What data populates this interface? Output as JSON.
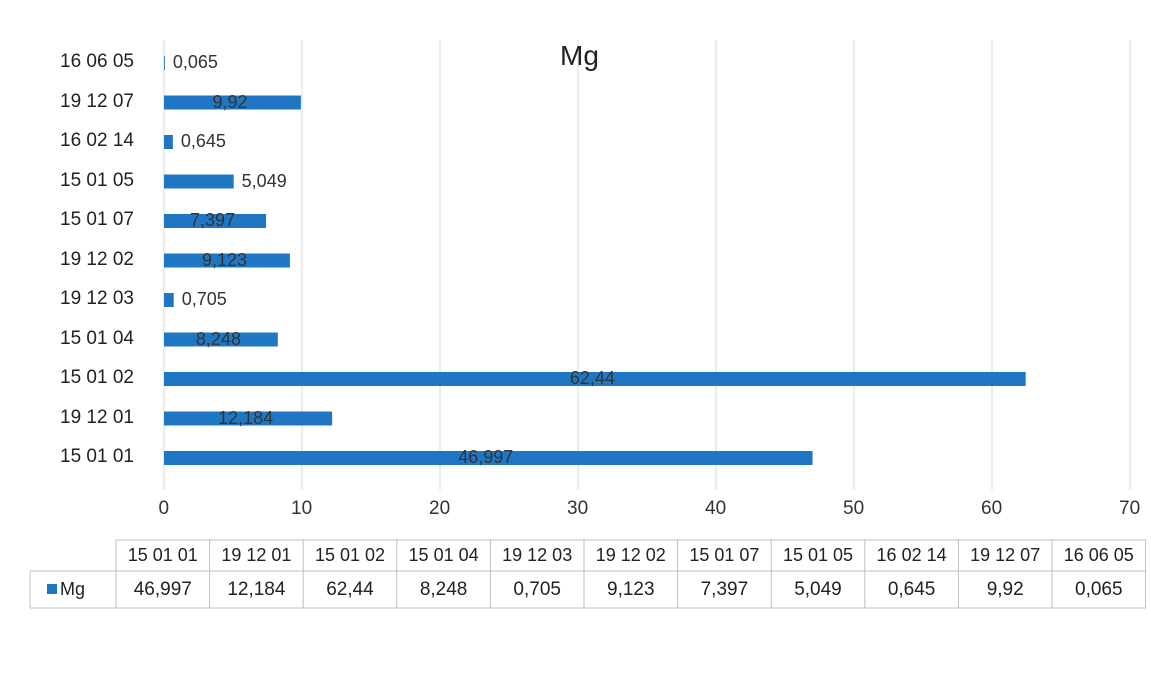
{
  "chart_data": {
    "type": "bar",
    "orientation": "horizontal",
    "title": "Mg",
    "categories": [
      "15 01 01",
      "19 12 01",
      "15 01 02",
      "15 01 04",
      "19 12 03",
      "19 12 02",
      "15 01 07",
      "15 01 05",
      "16 02 14",
      "19 12 07",
      "16 06 05"
    ],
    "series": [
      {
        "name": "Mg",
        "values": [
          46.997,
          12.184,
          62.44,
          8.248,
          0.705,
          9.123,
          7.397,
          5.049,
          0.645,
          9.92,
          0.065
        ],
        "labels": [
          "46,997",
          "12,184",
          "62,44",
          "8,248",
          "0,705",
          "9,123",
          "7,397",
          "5,049",
          "0,645",
          "9,92",
          "0,065"
        ],
        "color": "#1f77c4"
      }
    ],
    "xlim": [
      0,
      70
    ],
    "ticks": [
      "0",
      "10",
      "20",
      "30",
      "40",
      "50",
      "60",
      "70"
    ],
    "grid": true,
    "data_table": true,
    "xlabel": "",
    "ylabel": ""
  }
}
